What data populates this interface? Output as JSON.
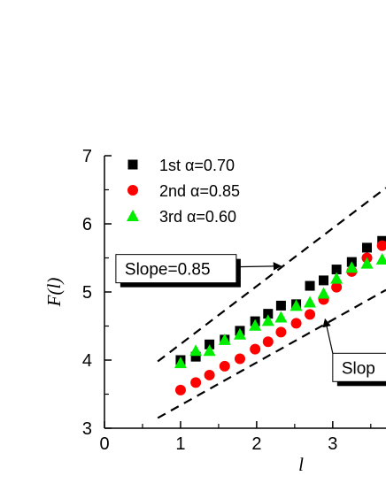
{
  "chart_data": {
    "type": "scatter",
    "xlabel": "l",
    "ylabel": "F(l)",
    "xlim": [
      0,
      3.7
    ],
    "ylim": [
      3,
      7
    ],
    "xticks": [
      "0",
      "1",
      "2",
      "3"
    ],
    "yticks": [
      "3",
      "4",
      "5",
      "6",
      "7"
    ],
    "legend_position": "top-left",
    "series": [
      {
        "name": "1st α=0.70",
        "marker": "square",
        "color": "#000000",
        "x": [
          1.0,
          1.2,
          1.38,
          1.58,
          1.78,
          1.98,
          2.15,
          2.32,
          2.52,
          2.7,
          2.88,
          3.05,
          3.25,
          3.45,
          3.65
        ],
        "y": [
          4.0,
          4.05,
          4.23,
          4.3,
          4.43,
          4.57,
          4.68,
          4.8,
          4.82,
          5.09,
          5.17,
          5.33,
          5.44,
          5.65,
          5.75
        ]
      },
      {
        "name": "2nd α=0.85",
        "marker": "circle",
        "color": "#ff0000",
        "x": [
          1.0,
          1.2,
          1.38,
          1.58,
          1.78,
          1.98,
          2.15,
          2.32,
          2.52,
          2.7,
          2.88,
          3.05,
          3.25,
          3.45,
          3.65
        ],
        "y": [
          3.56,
          3.67,
          3.78,
          3.91,
          4.02,
          4.16,
          4.27,
          4.41,
          4.54,
          4.67,
          4.89,
          5.07,
          5.3,
          5.5,
          5.68
        ]
      },
      {
        "name": "3rd α=0.60",
        "marker": "triangle",
        "color": "#00ee00",
        "x": [
          1.0,
          1.2,
          1.38,
          1.58,
          1.78,
          1.98,
          2.15,
          2.32,
          2.52,
          2.7,
          2.88,
          3.05,
          3.25,
          3.45,
          3.65
        ],
        "y": [
          3.96,
          4.14,
          4.14,
          4.3,
          4.38,
          4.51,
          4.58,
          4.63,
          4.8,
          4.85,
          4.98,
          5.2,
          5.36,
          5.42,
          5.48
        ]
      }
    ],
    "guides": [
      {
        "style": "dashed",
        "x": [
          0.7,
          3.7
        ],
        "y": [
          3.98,
          6.53
        ]
      },
      {
        "style": "dashed",
        "x": [
          0.7,
          3.7
        ],
        "y": [
          3.15,
          5.03
        ]
      }
    ],
    "annotations": [
      {
        "text": "Slope=0.85",
        "box_x": 0.15,
        "box_y": 5.55,
        "arrow_to": [
          2.32,
          5.38
        ]
      },
      {
        "text": "Slop",
        "box_x": 3.0,
        "box_y": 4.1,
        "arrow_to": [
          2.9,
          4.6
        ]
      }
    ]
  }
}
